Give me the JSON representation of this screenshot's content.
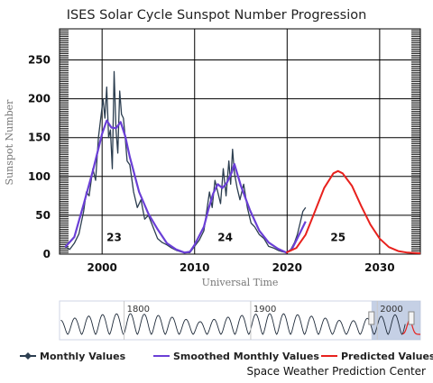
{
  "credit": "Space Weather Prediction Center",
  "colors": {
    "monthly": "#2c3e50",
    "smoothed": "#6a3fd6",
    "predicted": "#e8211d",
    "navigator": "#b7c4df"
  },
  "navigator": {
    "labels": [
      "1800",
      "1900",
      "2000"
    ]
  },
  "chart_data": {
    "type": "line",
    "title": "ISES Solar Cycle Sunspot Number Progression",
    "xlabel": "Universal Time",
    "ylabel": "Sunspot Number",
    "xlim": [
      1995.4,
      2034.4
    ],
    "ylim": [
      0,
      290
    ],
    "xticks": [
      2000,
      2010,
      2020,
      2030
    ],
    "yticks": [
      0,
      50,
      100,
      150,
      200,
      250
    ],
    "grid": true,
    "legend_position": "bottom",
    "annotations": [
      {
        "label": "23",
        "x": 2001.3,
        "y": 17
      },
      {
        "label": "24",
        "x": 2013.3,
        "y": 17
      },
      {
        "label": "25",
        "x": 2025.5,
        "y": 17
      }
    ],
    "series": [
      {
        "name": "Monthly Values",
        "x": [
          1996.0,
          1996.5,
          1997.0,
          1997.5,
          1998.0,
          1998.3,
          1998.6,
          1999.0,
          1999.3,
          1999.6,
          1999.9,
          2000.1,
          2000.3,
          2000.5,
          2000.7,
          2000.9,
          2001.1,
          2001.3,
          2001.5,
          2001.7,
          2001.9,
          2002.1,
          2002.3,
          2002.5,
          2002.7,
          2003.0,
          2003.4,
          2003.8,
          2004.2,
          2004.6,
          2005.0,
          2005.5,
          2006.0,
          2006.5,
          2007.0,
          2007.5,
          2008.0,
          2008.5,
          2009.0,
          2009.5,
          2010.0,
          2010.5,
          2011.0,
          2011.3,
          2011.6,
          2011.9,
          2012.2,
          2012.5,
          2012.8,
          2013.1,
          2013.4,
          2013.7,
          2013.9,
          2014.1,
          2014.3,
          2014.6,
          2014.9,
          2015.3,
          2015.7,
          2016.1,
          2016.5,
          2017.0,
          2017.5,
          2018.0,
          2018.5,
          2019.0,
          2019.5,
          2020.0,
          2020.4,
          2020.8,
          2021.1,
          2021.4,
          2021.7,
          2022.0
        ],
        "values": [
          10,
          6,
          14,
          26,
          55,
          80,
          75,
          110,
          95,
          150,
          180,
          200,
          175,
          215,
          150,
          160,
          110,
          235,
          160,
          130,
          210,
          180,
          175,
          150,
          120,
          115,
          80,
          60,
          70,
          45,
          50,
          35,
          20,
          15,
          12,
          8,
          5,
          3,
          2,
          2,
          10,
          18,
          30,
          55,
          80,
          60,
          95,
          80,
          65,
          110,
          75,
          120,
          90,
          135,
          105,
          85,
          70,
          90,
          60,
          40,
          35,
          25,
          20,
          10,
          8,
          5,
          3,
          2,
          6,
          15,
          25,
          40,
          55,
          60
        ]
      },
      {
        "name": "Smoothed Monthly Values",
        "x": [
          1996.0,
          1997.0,
          1998.0,
          1999.0,
          2000.0,
          2000.5,
          2001.0,
          2001.5,
          2002.0,
          2002.5,
          2003.0,
          2004.0,
          2005.0,
          2006.0,
          2007.0,
          2008.0,
          2008.9,
          2009.5,
          2010.0,
          2011.0,
          2011.5,
          2012.0,
          2012.5,
          2013.0,
          2013.5,
          2014.0,
          2014.3,
          2015.0,
          2016.0,
          2017.0,
          2018.0,
          2019.0,
          2019.9,
          2020.5,
          2021.0,
          2021.5,
          2022.0
        ],
        "values": [
          9,
          22,
          64,
          107,
          155,
          172,
          163,
          162,
          170,
          152,
          125,
          80,
          52,
          32,
          14,
          6,
          2,
          3,
          12,
          35,
          58,
          78,
          90,
          85,
          92,
          105,
          116,
          88,
          56,
          30,
          15,
          7,
          2,
          6,
          18,
          30,
          42
        ]
      },
      {
        "name": "Predicted Values",
        "x": [
          2019.9,
          2021.0,
          2022.0,
          2023.0,
          2024.0,
          2025.0,
          2025.5,
          2026.0,
          2027.0,
          2028.0,
          2029.0,
          2030.0,
          2031.0,
          2032.0,
          2033.0,
          2034.4
        ],
        "values": [
          2,
          8,
          25,
          55,
          85,
          104,
          107,
          104,
          88,
          62,
          38,
          20,
          9,
          4,
          2,
          1
        ]
      }
    ]
  }
}
